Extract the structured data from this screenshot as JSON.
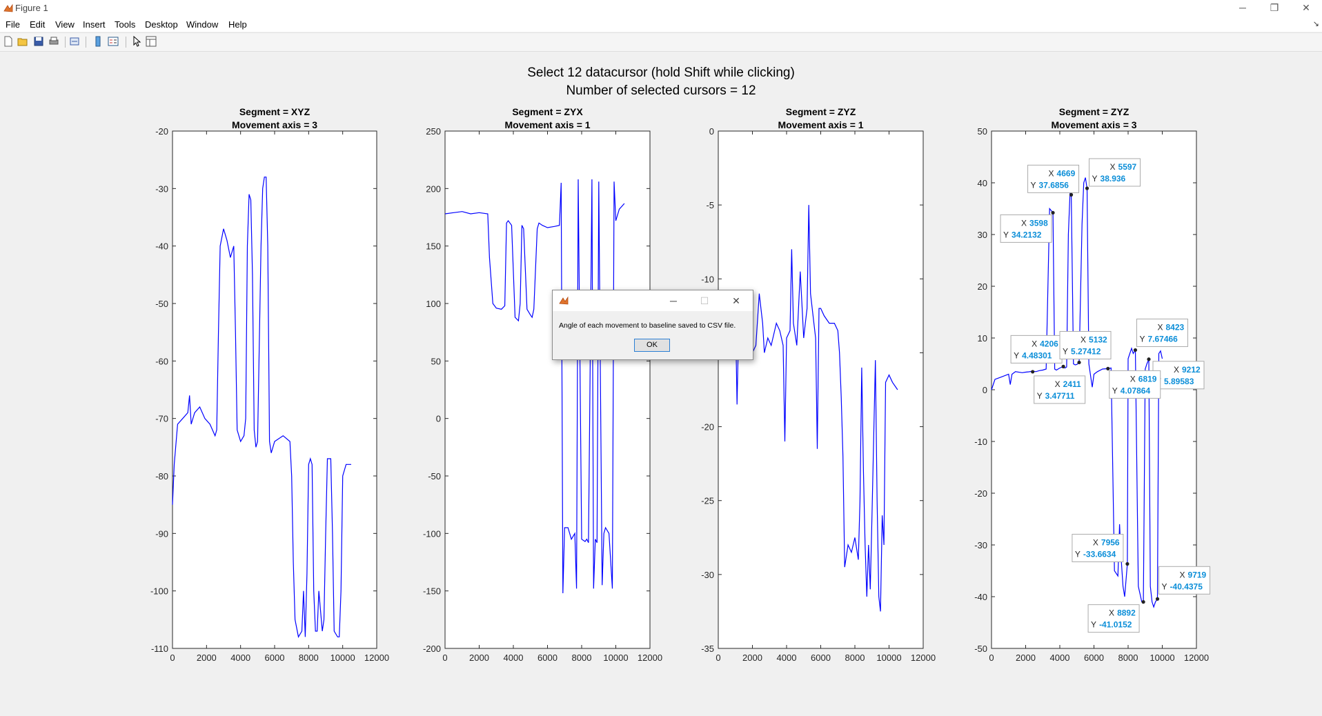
{
  "window": {
    "title": "Figure 1",
    "minimize_icon": "minimize-icon",
    "restore_icon": "restore-icon",
    "close_icon": "close-icon",
    "minimize_glyph": "─",
    "restore_glyph": "❐",
    "close_glyph": "✕"
  },
  "menu": [
    "File",
    "Edit",
    "View",
    "Insert",
    "Tools",
    "Desktop",
    "Window",
    "Help"
  ],
  "toolbar": {
    "icons": [
      "new-figure-icon",
      "open-file-icon",
      "save-icon",
      "print-icon",
      "link-icon",
      "colorbar-icon",
      "legend-icon",
      "pointer-icon",
      "property-editor-icon"
    ]
  },
  "figure": {
    "title_line1": "Select 12 datacursor (hold Shift while clicking)",
    "title_line2": "Number of selected cursors = 12"
  },
  "chart_data": [
    {
      "type": "line",
      "title": "Segment = XYZ",
      "subtitle": "Movement axis = 3",
      "xlim": [
        0,
        12000
      ],
      "ylim": [
        -110,
        -20
      ],
      "xticks": [
        0,
        2000,
        4000,
        6000,
        8000,
        10000,
        12000
      ],
      "yticks": [
        -110,
        -100,
        -90,
        -80,
        -70,
        -60,
        -50,
        -40,
        -30,
        -20
      ],
      "color": "#0000ff",
      "series": [
        {
          "x": [
            0,
            100,
            300,
            600,
            900,
            1000,
            1100,
            1300,
            1600,
            1900,
            2200,
            2500,
            2600,
            2700,
            2800,
            3000,
            3200,
            3400,
            3600,
            3700,
            3800,
            4000,
            4200,
            4300,
            4400,
            4500,
            4600,
            4700,
            4800,
            4900,
            5000,
            5200,
            5300,
            5400,
            5500,
            5600,
            5700,
            5800,
            6000,
            6500,
            6900,
            7000,
            7100,
            7200,
            7400,
            7600,
            7700,
            7800,
            7900,
            8000,
            8100,
            8200,
            8300,
            8400,
            8500,
            8600,
            8800,
            8900,
            9000,
            9100,
            9300,
            9400,
            9500,
            9700,
            9800,
            9900,
            10000,
            10200,
            10500
          ],
          "y": [
            -85,
            -78,
            -71,
            -70,
            -69,
            -66,
            -71,
            -69,
            -68,
            -70,
            -71,
            -73,
            -72,
            -55,
            -40,
            -37,
            -39,
            -42,
            -40,
            -55,
            -72,
            -74,
            -73,
            -70,
            -40,
            -31,
            -32,
            -45,
            -72,
            -75,
            -74,
            -40,
            -30,
            -28,
            -28,
            -40,
            -74,
            -76,
            -74,
            -73,
            -74,
            -80,
            -95,
            -105,
            -108,
            -107,
            -100,
            -108,
            -97,
            -78,
            -77,
            -78,
            -100,
            -107,
            -107,
            -100,
            -107,
            -105,
            -90,
            -77,
            -77,
            -90,
            -107,
            -108,
            -108,
            -100,
            -80,
            -78,
            -78
          ]
        }
      ]
    },
    {
      "type": "line",
      "title": "Segment = ZYX",
      "subtitle": "Movement axis = 1",
      "xlim": [
        0,
        12000
      ],
      "ylim": [
        -200,
        250
      ],
      "xticks": [
        0,
        2000,
        4000,
        6000,
        8000,
        10000,
        12000
      ],
      "yticks": [
        -200,
        -150,
        -100,
        -50,
        0,
        50,
        100,
        150,
        200,
        250
      ],
      "color": "#0000ff",
      "series": [
        {
          "x": [
            0,
            500,
            1000,
            1500,
            2000,
            2500,
            2600,
            2800,
            3000,
            3300,
            3500,
            3600,
            3700,
            3900,
            4100,
            4300,
            4400,
            4500,
            4600,
            4800,
            5000,
            5100,
            5200,
            5400,
            5500,
            5700,
            6000,
            6400,
            6700,
            6800,
            6900,
            7000,
            7200,
            7400,
            7600,
            7700,
            7800,
            8000,
            8200,
            8300,
            8400,
            8600,
            8700,
            8800,
            8900,
            9000,
            9200,
            9300,
            9400,
            9600,
            9800,
            9900,
            10000,
            10200,
            10500
          ],
          "y": [
            178,
            179,
            180,
            178,
            179,
            178,
            140,
            100,
            96,
            95,
            98,
            170,
            172,
            168,
            88,
            85,
            100,
            168,
            165,
            95,
            90,
            88,
            95,
            165,
            170,
            168,
            166,
            167,
            168,
            205,
            -152,
            -95,
            -95,
            -105,
            -100,
            -148,
            208,
            -105,
            -107,
            -105,
            -108,
            208,
            -148,
            -105,
            -108,
            206,
            -145,
            -100,
            -95,
            -100,
            -148,
            206,
            172,
            182,
            187
          ]
        }
      ]
    },
    {
      "type": "line",
      "title": "Segment = ZYZ",
      "subtitle": "Movement axis = 1",
      "xlim": [
        0,
        12000
      ],
      "ylim": [
        -35,
        0
      ],
      "xticks": [
        0,
        2000,
        4000,
        6000,
        8000,
        10000,
        12000
      ],
      "yticks": [
        -35,
        -30,
        -25,
        -20,
        -15,
        -10,
        -5,
        0
      ],
      "color": "#0000ff",
      "series": [
        {
          "x": [
            0,
            200,
            500,
            800,
            1000,
            1100,
            1200,
            1400,
            1700,
            2000,
            2200,
            2400,
            2600,
            2700,
            2900,
            3100,
            3400,
            3600,
            3800,
            3900,
            4000,
            4200,
            4300,
            4400,
            4600,
            4700,
            4800,
            5000,
            5100,
            5200,
            5300,
            5400,
            5600,
            5700,
            5800,
            5900,
            6000,
            6200,
            6500,
            6800,
            7000,
            7100,
            7200,
            7300,
            7400,
            7600,
            7800,
            8000,
            8200,
            8300,
            8400,
            8500,
            8600,
            8700,
            8800,
            8900,
            9000,
            9200,
            9300,
            9400,
            9500,
            9600,
            9700,
            9800,
            10000,
            10200,
            10500
          ],
          "y": [
            -12,
            -11,
            -13,
            -14,
            -12,
            -18.5,
            -13,
            -14,
            -14.5,
            -15,
            -14.5,
            -11,
            -13,
            -15,
            -14,
            -14.5,
            -13,
            -13.5,
            -14.5,
            -21,
            -14,
            -13.5,
            -8,
            -13,
            -14.5,
            -12,
            -9.5,
            -14,
            -13,
            -12,
            -5,
            -11,
            -13,
            -14,
            -21.5,
            -12,
            -12,
            -12.5,
            -13,
            -13,
            -13.5,
            -15,
            -18,
            -22,
            -29.5,
            -28,
            -28.5,
            -27.5,
            -29,
            -25,
            -16,
            -23,
            -28,
            -31.5,
            -28,
            -31,
            -26,
            -15.5,
            -25,
            -31.5,
            -32.5,
            -26,
            -28,
            -17,
            -16.5,
            -17,
            -17.5
          ]
        }
      ]
    },
    {
      "type": "line",
      "title": "Segment = ZYZ",
      "subtitle": "Movement axis = 3",
      "xlim": [
        0,
        12000
      ],
      "ylim": [
        -50,
        50
      ],
      "xticks": [
        0,
        2000,
        4000,
        6000,
        8000,
        10000,
        12000
      ],
      "yticks": [
        -50,
        -40,
        -30,
        -20,
        -10,
        0,
        10,
        20,
        30,
        40,
        50
      ],
      "color": "#0000ff",
      "series": [
        {
          "x": [
            0,
            200,
            600,
            1000,
            1100,
            1200,
            1400,
            1800,
            2000,
            2200,
            2400,
            2600,
            2800,
            3000,
            3200,
            3400,
            3598,
            3700,
            3800,
            4000,
            4206,
            4300,
            4400,
            4500,
            4600,
            4669,
            4800,
            4900,
            5000,
            5132,
            5300,
            5400,
            5500,
            5597,
            5700,
            5900,
            6000,
            6200,
            6500,
            6819,
            7000,
            7200,
            7400,
            7500,
            7600,
            7700,
            7800,
            7956,
            8000,
            8200,
            8300,
            8423,
            8600,
            8800,
            8892,
            9000,
            9100,
            9212,
            9300,
            9400,
            9500,
            9600,
            9719,
            9800,
            9900,
            10000
          ],
          "y": [
            0,
            2,
            2.5,
            3,
            1,
            3,
            3.5,
            3.3,
            3.4,
            3.47,
            3.6,
            3.5,
            3.7,
            3.8,
            4,
            35,
            34.21,
            4,
            3.8,
            4.2,
            4.48,
            4.2,
            4.4,
            30,
            38,
            37.69,
            5,
            4.8,
            4.9,
            5.27,
            32,
            40,
            41,
            38.94,
            5,
            0.5,
            3,
            3.5,
            4,
            4.08,
            4.2,
            -35,
            -36,
            -26,
            -33,
            -38,
            -40,
            -33.66,
            6,
            8,
            7,
            7.67,
            -38,
            -41,
            -41.02,
            4,
            5,
            5.9,
            -38,
            -41,
            -42,
            -41,
            -40.44,
            7,
            7.5,
            6
          ]
        }
      ],
      "datatips": [
        {
          "x_label": "X",
          "y_label": "Y",
          "x": "4669",
          "y": "37.6856"
        },
        {
          "x_label": "X",
          "y_label": "Y",
          "x": "5597",
          "y": "38.936"
        },
        {
          "x_label": "X",
          "y_label": "Y",
          "x": "3598",
          "y": "34.2132"
        },
        {
          "x_label": "X",
          "y_label": "Y",
          "x": "4206",
          "y": "4.48301"
        },
        {
          "x_label": "X",
          "y_label": "Y",
          "x": "5132",
          "y": "5.27412"
        },
        {
          "x_label": "X",
          "y_label": "Y",
          "x": "8423",
          "y": "7.67466"
        },
        {
          "x_label": "X",
          "y_label": "Y",
          "x": "9212",
          "y": "5.89583"
        },
        {
          "x_label": "X",
          "y_label": "Y",
          "x": "2411",
          "y": "3.47711"
        },
        {
          "x_label": "X",
          "y_label": "Y",
          "x": "6819",
          "y": "4.07864"
        },
        {
          "x_label": "X",
          "y_label": "Y",
          "x": "7956",
          "y": "-33.6634"
        },
        {
          "x_label": "X",
          "y_label": "Y",
          "x": "9719",
          "y": "-40.4375"
        },
        {
          "x_label": "X",
          "y_label": "Y",
          "x": "8892",
          "y": "-41.0152"
        }
      ]
    }
  ],
  "dialog": {
    "message": "Angle of each movement to baseline saved to CSV file.",
    "ok_label": "OK",
    "minimize_glyph": "─",
    "maximize_glyph": "☐",
    "close_glyph": "✕"
  }
}
